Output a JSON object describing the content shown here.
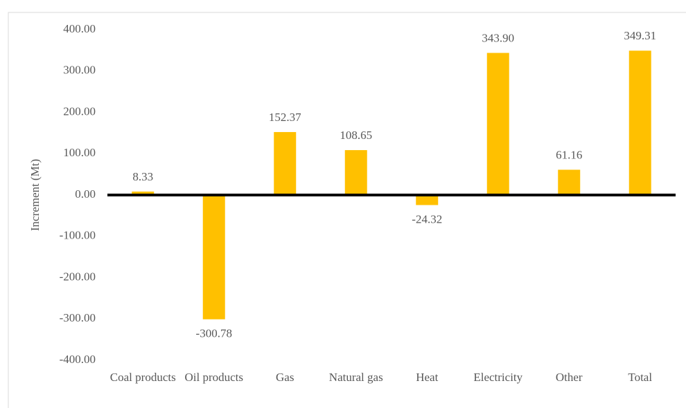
{
  "chart_data": {
    "type": "bar",
    "y_label": "Increment (Mt)",
    "categories": [
      "Coal products",
      "Oil products",
      "Gas",
      "Natural gas",
      "Heat",
      "Electricity",
      "Other",
      "Total"
    ],
    "values": [
      8.33,
      -300.78,
      152.37,
      108.65,
      -24.32,
      343.9,
      61.16,
      349.31
    ],
    "value_labels": [
      "8.33",
      "-300.78",
      "152.37",
      "108.65",
      "-24.32",
      "343.90",
      "61.16",
      "349.31"
    ],
    "color": "#ffc000",
    "ylim": [
      -400,
      400
    ],
    "yticks": [
      {
        "value": 400,
        "label": "400.00"
      },
      {
        "value": 300,
        "label": "300.00"
      },
      {
        "value": 200,
        "label": "200.00"
      },
      {
        "value": 100,
        "label": "100.00"
      },
      {
        "value": 0,
        "label": "0.00"
      },
      {
        "value": -100,
        "label": "-100.00"
      },
      {
        "value": -200,
        "label": "-200.00"
      },
      {
        "value": -300,
        "label": "-300.00"
      },
      {
        "value": -400,
        "label": "-400.00"
      }
    ],
    "grid": false
  }
}
